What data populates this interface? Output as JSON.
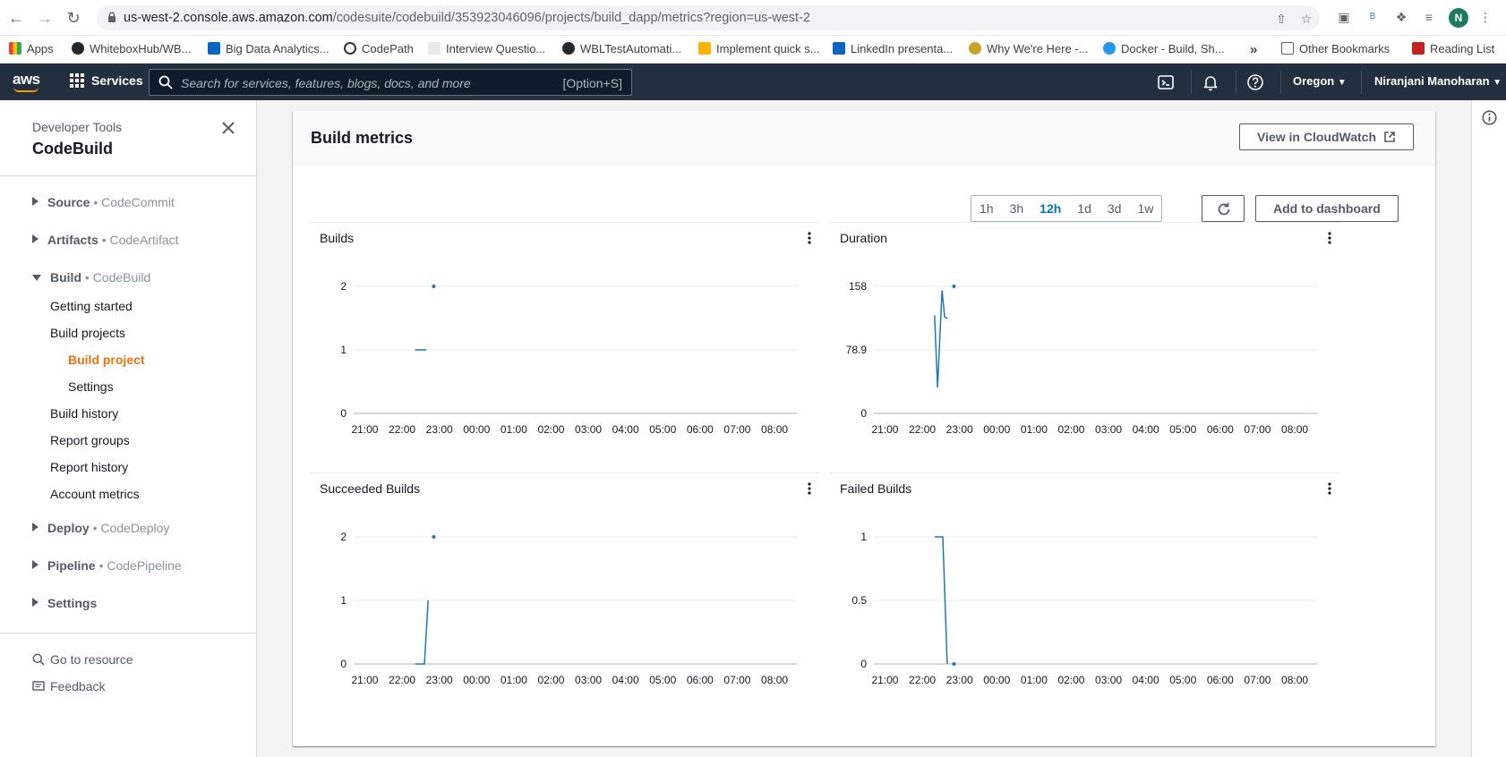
{
  "browser": {
    "url_host": "us-west-2.console.aws.amazon.com",
    "url_path": "/codesuite/codebuild/353923046096/projects/build_dapp/metrics?region=us-west-2",
    "profile_initial": "N",
    "bookmarks": [
      "Apps",
      "WhiteboxHub/WB...",
      "Big Data Analytics...",
      "CodePath",
      "Interview Questio...",
      "WBLTestAutomati...",
      "Implement quick s...",
      "LinkedIn presenta...",
      "Why We're Here -...",
      "Docker - Build, Sh..."
    ],
    "bookmarks_more": "»",
    "other_bookmarks": "Other Bookmarks",
    "reading_list": "Reading List"
  },
  "aws": {
    "logo": "aws",
    "services": "Services",
    "search_placeholder": "Search for services, features, blogs, docs, and more",
    "search_shortcut": "[Option+S]",
    "region": "Oregon",
    "user": "Niranjani Manoharan"
  },
  "sidebar": {
    "subtitle": "Developer Tools",
    "title": "CodeBuild",
    "groups": {
      "source": {
        "name": "Source",
        "service": "CodeCommit"
      },
      "artifacts": {
        "name": "Artifacts",
        "service": "CodeArtifact"
      },
      "build": {
        "name": "Build",
        "service": "CodeBuild"
      },
      "deploy": {
        "name": "Deploy",
        "service": "CodeDeploy"
      },
      "pipeline": {
        "name": "Pipeline",
        "service": "CodePipeline"
      },
      "settings": {
        "name": "Settings"
      }
    },
    "dot": "•",
    "build_items": {
      "getting_started": "Getting started",
      "build_projects": "Build projects",
      "build_project": "Build project",
      "settings": "Settings",
      "build_history": "Build history",
      "report_groups": "Report groups",
      "report_history": "Report history",
      "account_metrics": "Account metrics"
    },
    "footer": {
      "go_to_resource": "Go to resource",
      "feedback": "Feedback"
    }
  },
  "panel": {
    "title": "Build metrics",
    "view_in_cloudwatch": "View in CloudWatch",
    "ranges": [
      "1h",
      "3h",
      "12h",
      "1d",
      "3d",
      "1w"
    ],
    "selected_range": "12h",
    "add_to_dashboard": "Add to dashboard"
  },
  "colors": {
    "series": "#1f77b4",
    "accent": "#ec7211",
    "link": "#0073bb"
  },
  "chart_data": [
    {
      "type": "line",
      "title": "Builds",
      "x_ticks": [
        "21:00",
        "22:00",
        "23:00",
        "00:00",
        "01:00",
        "02:00",
        "03:00",
        "04:00",
        "05:00",
        "06:00",
        "07:00",
        "08:00"
      ],
      "y_ticks": [
        "2",
        "1",
        "0"
      ],
      "ylim": [
        0,
        2
      ],
      "xlim": [
        20.7,
        32.6
      ],
      "series": [
        {
          "x": [
            22.35,
            22.65
          ],
          "y": [
            1,
            1
          ]
        },
        {
          "x": [
            22.85
          ],
          "y": [
            2
          ],
          "marker_only": true
        }
      ]
    },
    {
      "type": "line",
      "title": "Duration",
      "x_ticks": [
        "21:00",
        "22:00",
        "23:00",
        "00:00",
        "01:00",
        "02:00",
        "03:00",
        "04:00",
        "05:00",
        "06:00",
        "07:00",
        "08:00"
      ],
      "y_ticks": [
        "158",
        "78.9",
        "0"
      ],
      "ylim": [
        0,
        158
      ],
      "xlim": [
        20.7,
        32.6
      ],
      "series": [
        {
          "x": [
            22.33,
            22.41,
            22.53,
            22.6,
            22.68
          ],
          "y": [
            122,
            32,
            153,
            120,
            118
          ]
        },
        {
          "x": [
            22.85
          ],
          "y": [
            158
          ],
          "marker_only": true
        }
      ]
    },
    {
      "type": "line",
      "title": "Succeeded Builds",
      "x_ticks": [
        "21:00",
        "22:00",
        "23:00",
        "00:00",
        "01:00",
        "02:00",
        "03:00",
        "04:00",
        "05:00",
        "06:00",
        "07:00",
        "08:00"
      ],
      "y_ticks": [
        "2",
        "1",
        "0"
      ],
      "ylim": [
        0,
        2
      ],
      "xlim": [
        20.7,
        32.6
      ],
      "series": [
        {
          "x": [
            22.35,
            22.6,
            22.7
          ],
          "y": [
            0,
            0,
            1
          ]
        },
        {
          "x": [
            22.85
          ],
          "y": [
            2
          ],
          "marker_only": true
        }
      ]
    },
    {
      "type": "line",
      "title": "Failed Builds",
      "x_ticks": [
        "21:00",
        "22:00",
        "23:00",
        "00:00",
        "01:00",
        "02:00",
        "03:00",
        "04:00",
        "05:00",
        "06:00",
        "07:00",
        "08:00"
      ],
      "y_ticks": [
        "1",
        "0.5",
        "0"
      ],
      "ylim": [
        0,
        1
      ],
      "xlim": [
        20.7,
        32.6
      ],
      "series": [
        {
          "x": [
            22.33,
            22.55,
            22.67
          ],
          "y": [
            1,
            1,
            0
          ]
        },
        {
          "x": [
            22.85
          ],
          "y": [
            0
          ],
          "marker_only": true
        }
      ]
    }
  ]
}
